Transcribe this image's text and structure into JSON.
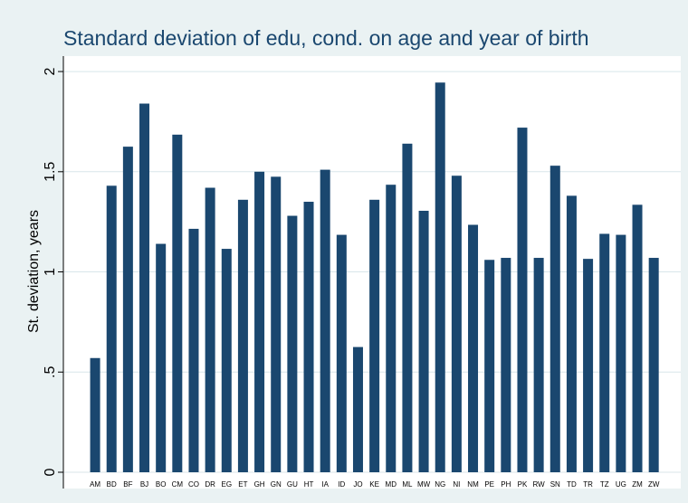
{
  "chart_data": {
    "type": "bar",
    "title": "Standard deviation of edu, cond. on age and year of birth",
    "y_label": "St. deviation, years",
    "categories": [
      "AM",
      "BD",
      "BF",
      "BJ",
      "BO",
      "CM",
      "CO",
      "DR",
      "EG",
      "ET",
      "GH",
      "GN",
      "GU",
      "HT",
      "IA",
      "ID",
      "JO",
      "KE",
      "MD",
      "ML",
      "MW",
      "NG",
      "NI",
      "NM",
      "PE",
      "PH",
      "PK",
      "RW",
      "SN",
      "TD",
      "TR",
      "TZ",
      "UG",
      "ZM",
      "ZW"
    ],
    "values": [
      0.57,
      1.43,
      1.625,
      1.84,
      1.14,
      1.685,
      1.215,
      1.42,
      1.115,
      1.36,
      1.5,
      1.475,
      1.28,
      1.35,
      1.51,
      1.185,
      0.625,
      1.36,
      1.435,
      1.64,
      1.305,
      1.945,
      1.48,
      1.235,
      1.06,
      1.07,
      1.72,
      1.07,
      1.53,
      1.38,
      1.065,
      1.19,
      1.185,
      1.335,
      1.07
    ],
    "color": "#1a476f",
    "ylim": [
      0,
      2.05
    ],
    "yticks": [
      0,
      {
        "value": 0.5,
        "label": ".5"
      },
      1,
      1.5,
      2
    ],
    "grid": true
  }
}
